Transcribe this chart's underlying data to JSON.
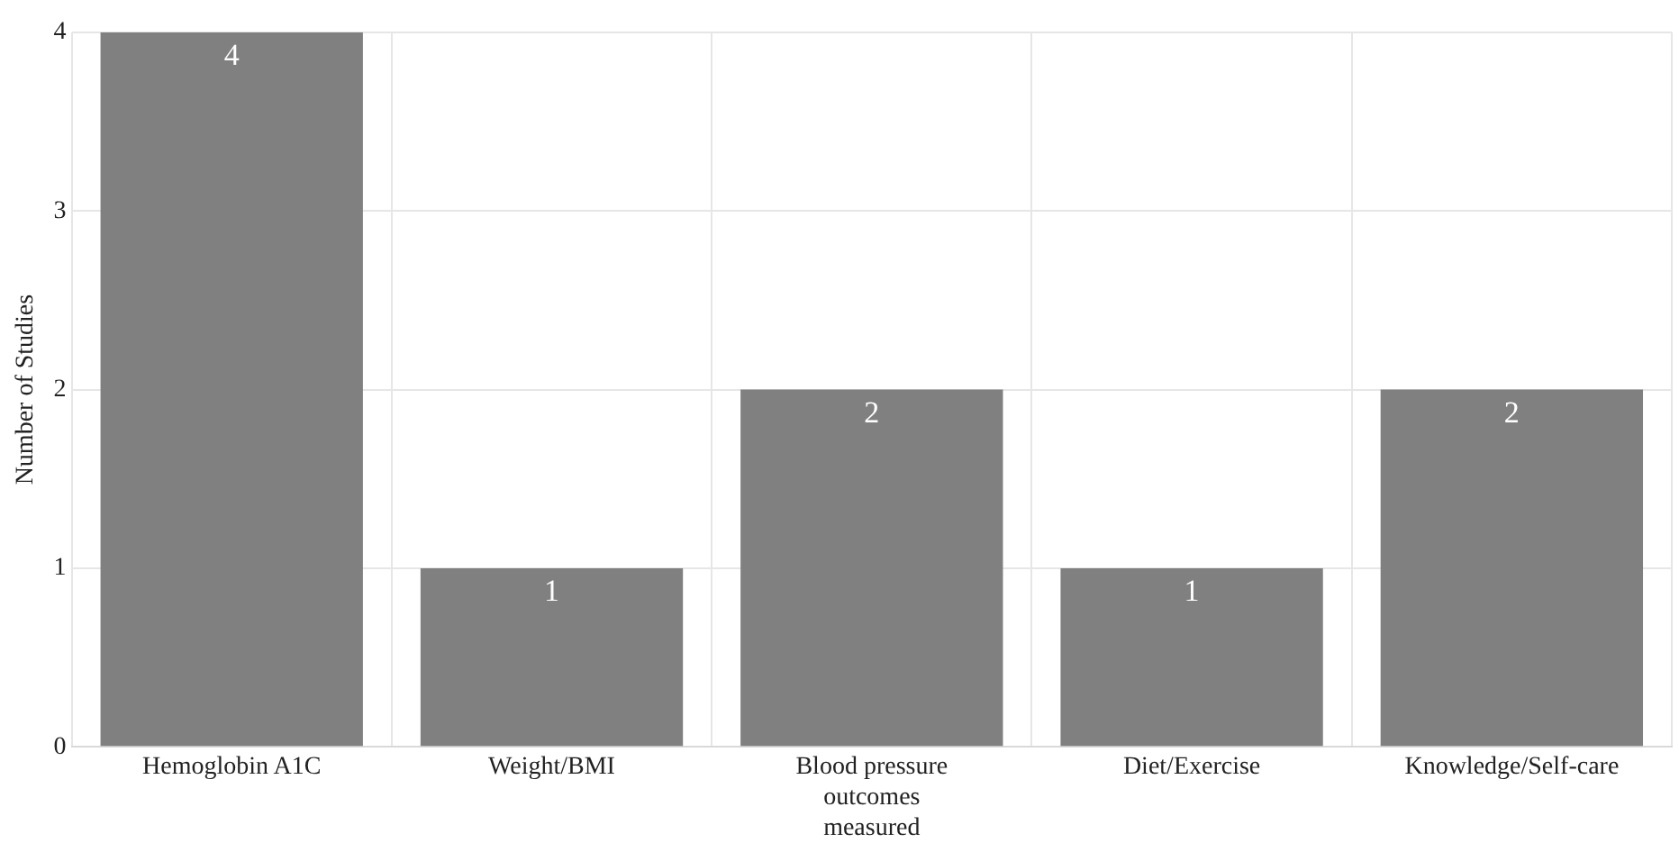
{
  "chart_data": {
    "type": "bar",
    "ylabel": "Number of Studies",
    "categories": [
      "Hemoglobin A1C",
      "Weight/BMI",
      "Blood pressure outcomes measured",
      "Diet/Exercise",
      "Knowledge/Self-care"
    ],
    "values": [
      4,
      1,
      2,
      1,
      2
    ],
    "color": "#808080",
    "ylim": [
      0,
      4
    ],
    "yticks": [
      0,
      1,
      2,
      3,
      4
    ],
    "grid": true,
    "data_labels": true
  }
}
